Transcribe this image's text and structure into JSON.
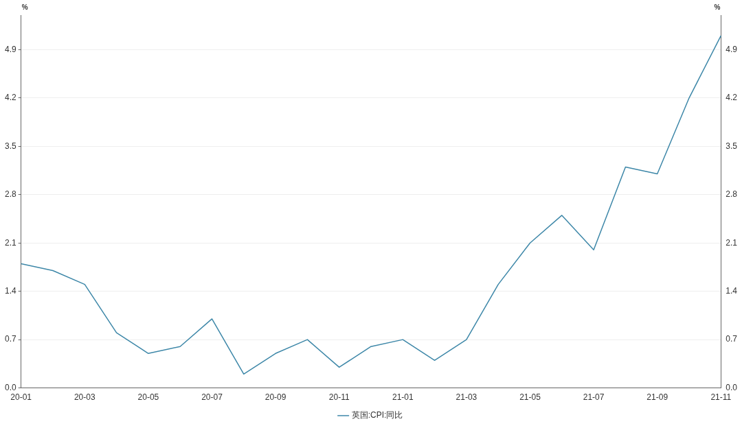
{
  "chart_data": {
    "type": "line",
    "ylabel": "%",
    "y2label": "%",
    "categories": [
      "20-01",
      null,
      "20-03",
      null,
      "20-05",
      null,
      "20-07",
      null,
      "20-09",
      null,
      "20-11",
      null,
      "21-01",
      null,
      "21-03",
      null,
      "21-05",
      null,
      "21-07",
      null,
      "21-09",
      null,
      "21-11"
    ],
    "series": [
      {
        "name": "英国:CPI:同比",
        "color": "#3d87a8",
        "values": [
          1.8,
          1.7,
          1.5,
          0.8,
          0.5,
          0.6,
          1.0,
          0.2,
          0.5,
          0.7,
          0.3,
          0.6,
          0.7,
          0.4,
          0.7,
          1.5,
          2.1,
          2.5,
          2.0,
          3.2,
          3.1,
          4.2,
          5.1
        ]
      }
    ],
    "ylim": [
      0,
      5.4
    ],
    "yticks": [
      {
        "value": 0,
        "label": "0.0"
      },
      0.7,
      1.4,
      2.1,
      2.8,
      3.5,
      4.2,
      4.9
    ],
    "y2lim": [
      0,
      5.4
    ],
    "y2ticks": [
      {
        "value": 0,
        "label": "0.0"
      },
      0.7,
      1.4,
      2.1,
      2.8,
      3.5,
      4.2,
      4.9
    ],
    "grid": "y",
    "legend": "bottom",
    "marker": "none",
    "line_style": "solid"
  }
}
